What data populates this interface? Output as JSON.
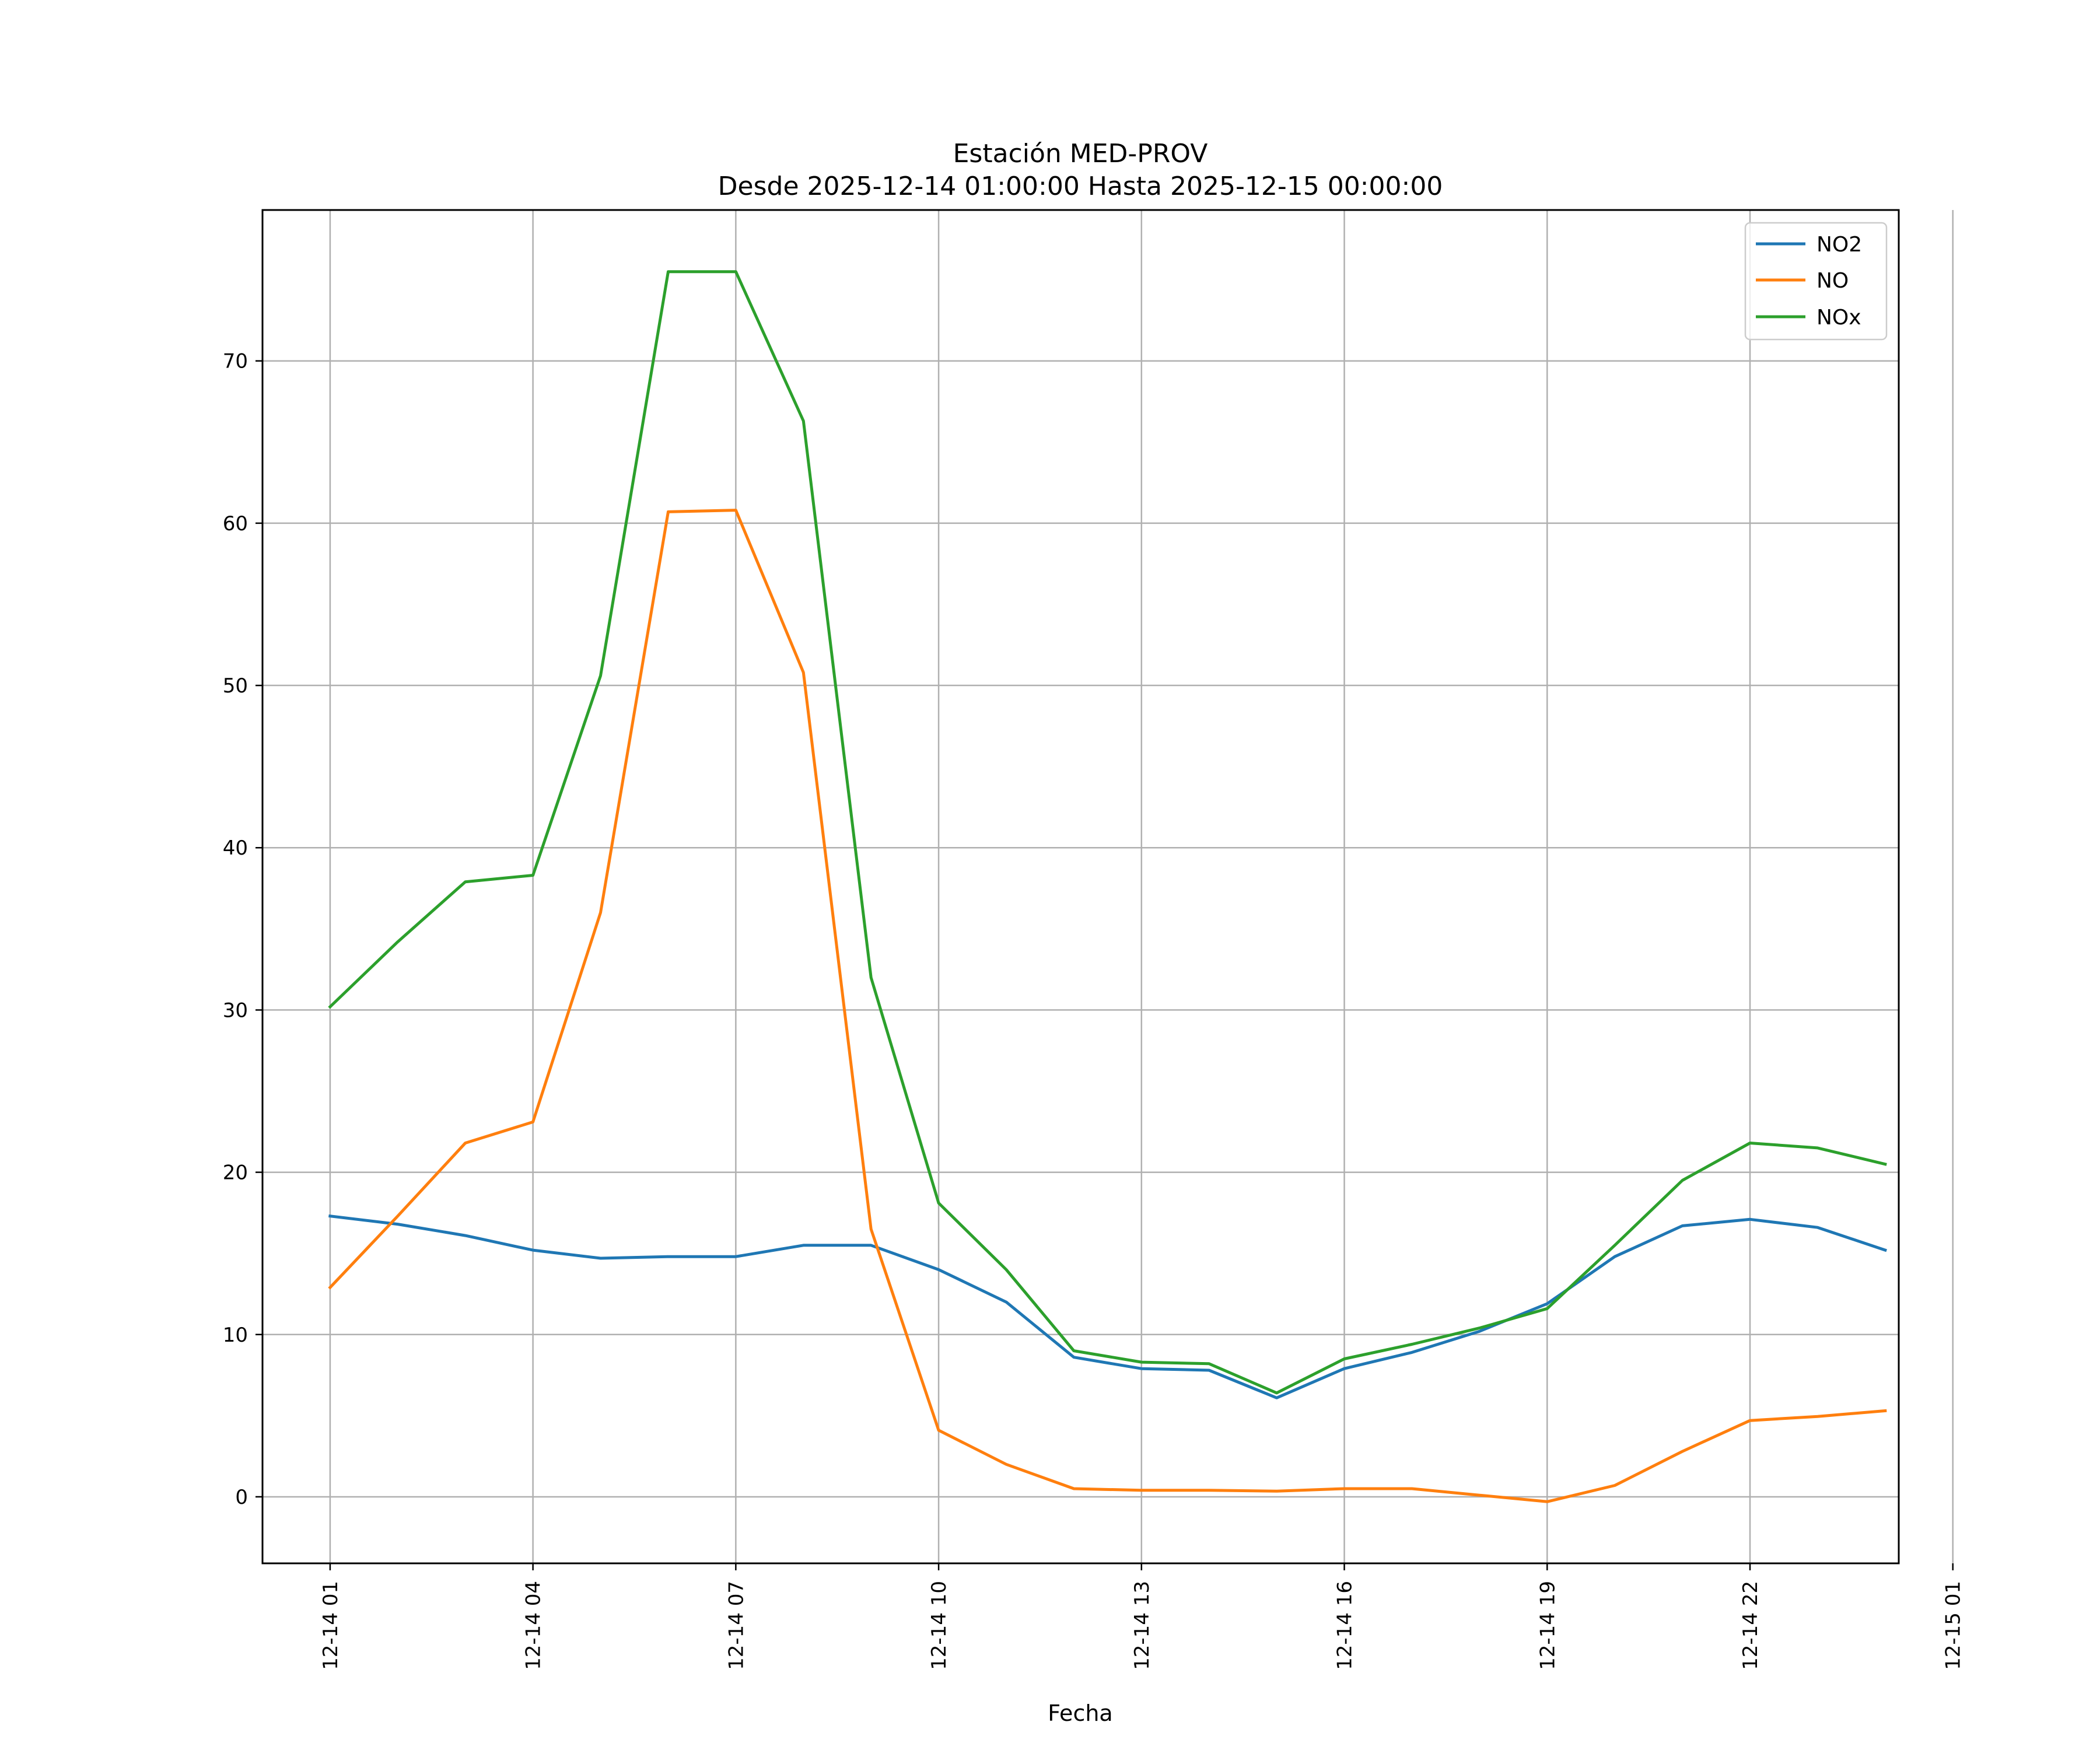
{
  "chart_data": {
    "type": "line",
    "title": "Estación MED-PROV",
    "subtitle": "Desde 2025-12-14 01:00:00 Hasta 2025-12-15 00:00:00",
    "xlabel": "Fecha",
    "ylabel": "",
    "x_range_hours": [
      0,
      24.2
    ],
    "ylim": [
      -4.1,
      79.3
    ],
    "grid": true,
    "legend_position": "top-right",
    "x_hours": [
      1,
      2,
      3,
      4,
      5,
      6,
      7,
      8,
      9,
      10,
      11,
      12,
      13,
      14,
      15,
      16,
      17,
      18,
      19,
      20,
      21,
      22,
      23,
      24
    ],
    "x_ticks": [
      {
        "hour": 1,
        "label": "12-14 01"
      },
      {
        "hour": 4,
        "label": "12-14 04"
      },
      {
        "hour": 7,
        "label": "12-14 07"
      },
      {
        "hour": 10,
        "label": "12-14 10"
      },
      {
        "hour": 13,
        "label": "12-14 13"
      },
      {
        "hour": 16,
        "label": "12-14 16"
      },
      {
        "hour": 19,
        "label": "12-14 19"
      },
      {
        "hour": 22,
        "label": "12-14 22"
      },
      {
        "hour": 25,
        "label": "12-15 01"
      }
    ],
    "y_ticks": [
      0,
      10,
      20,
      30,
      40,
      50,
      60,
      70
    ],
    "series": [
      {
        "name": "NO2",
        "color": "#1f77b4",
        "values": [
          17.3,
          16.8,
          16.1,
          15.2,
          14.7,
          14.8,
          14.8,
          15.5,
          15.5,
          14.0,
          12.0,
          8.6,
          7.9,
          7.8,
          6.1,
          7.9,
          8.9,
          10.2,
          11.9,
          14.8,
          16.7,
          17.1,
          16.6,
          15.2
        ]
      },
      {
        "name": "NO",
        "color": "#ff7f0e",
        "values": [
          12.9,
          17.3,
          21.8,
          23.1,
          36.0,
          60.7,
          60.8,
          50.8,
          16.5,
          4.1,
          2.0,
          0.5,
          0.4,
          0.4,
          0.35,
          0.5,
          0.5,
          0.1,
          -0.3,
          0.7,
          2.8,
          4.7,
          4.95,
          5.3
        ]
      },
      {
        "name": "NOx",
        "color": "#2ca02c",
        "values": [
          30.2,
          34.2,
          37.9,
          38.3,
          50.6,
          75.5,
          75.5,
          66.3,
          32.0,
          18.1,
          14.0,
          9.0,
          8.3,
          8.2,
          6.4,
          8.5,
          9.4,
          10.4,
          11.6,
          15.5,
          19.5,
          21.8,
          21.5,
          20.5
        ]
      }
    ]
  }
}
